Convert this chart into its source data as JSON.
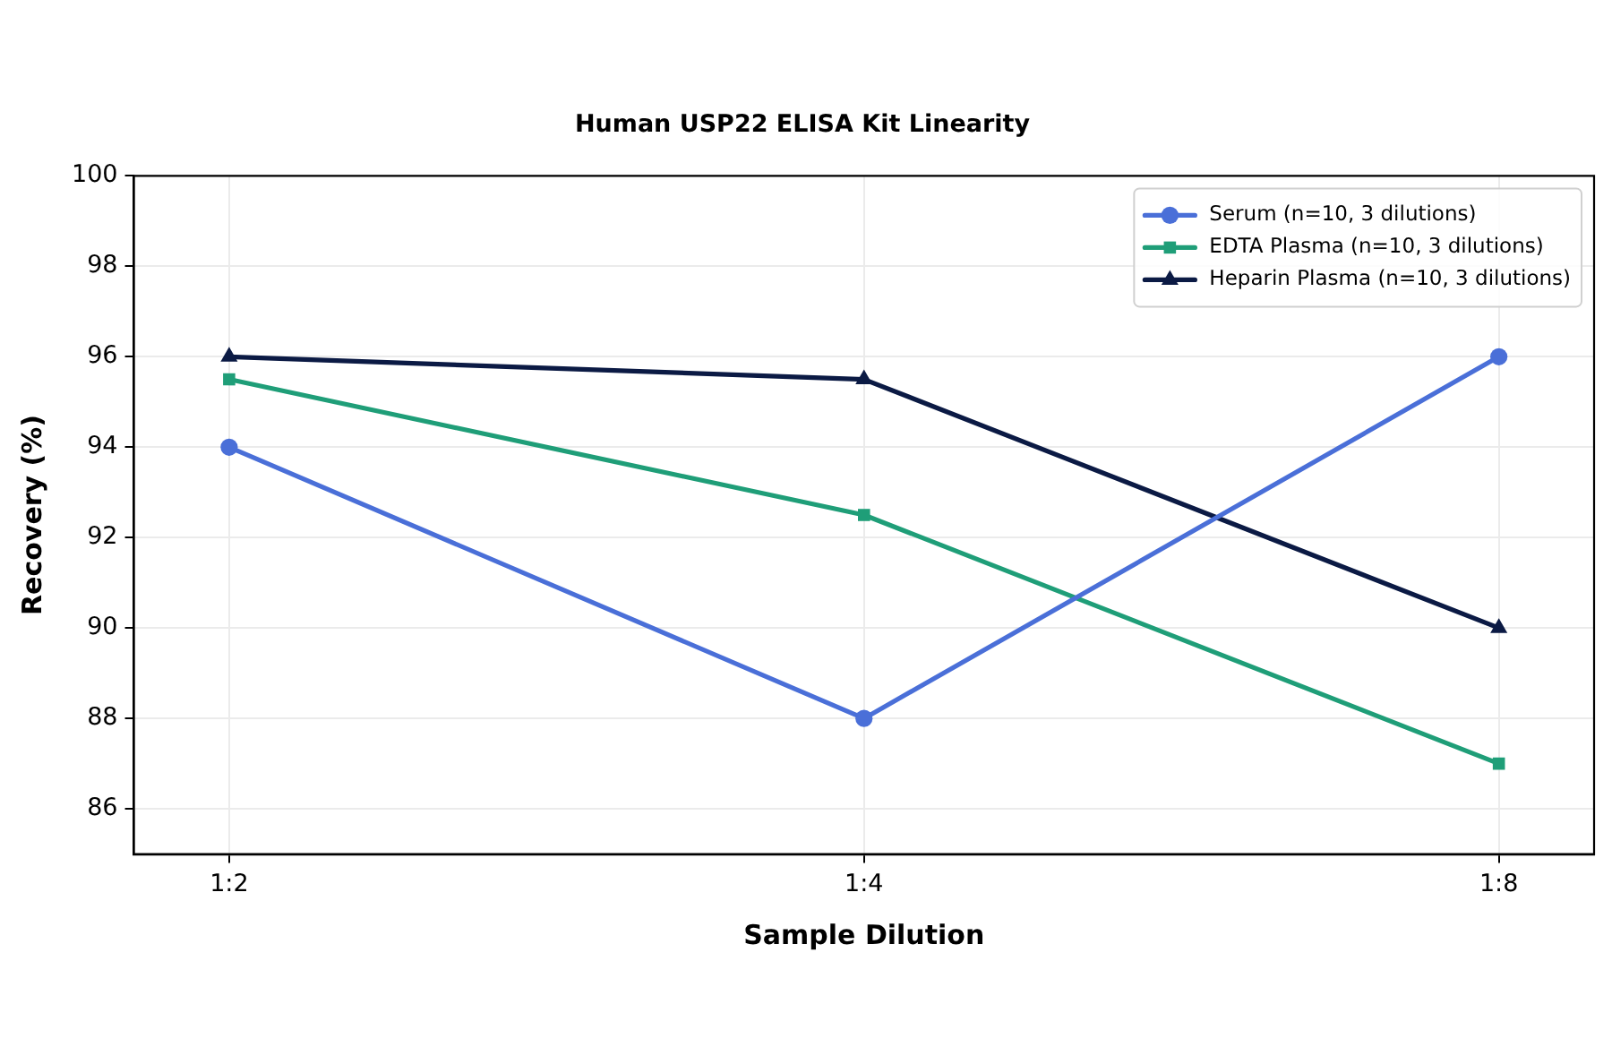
{
  "chart_data": {
    "type": "line",
    "title": "Human USP22 ELISA Kit Linearity",
    "xlabel": "Sample Dilution",
    "ylabel": "Recovery (%)",
    "categories": [
      "1:2",
      "1:4",
      "1:8"
    ],
    "series": [
      {
        "name": "Serum (n=10, 3 dilutions)",
        "color": "#4a6fd8",
        "values": [
          94,
          88,
          96
        ],
        "marker": "circle"
      },
      {
        "name": "EDTA Plasma (n=10, 3 dilutions)",
        "color": "#1f9e78",
        "values": [
          95.5,
          92.5,
          87
        ],
        "marker": "square"
      },
      {
        "name": "Heparin Plasma (n=10, 3 dilutions)",
        "color": "#0b1a44",
        "values": [
          96,
          95.5,
          90
        ],
        "marker": "triangle"
      }
    ],
    "ylim": [
      85,
      100
    ],
    "yticks": [
      86,
      88,
      90,
      92,
      94,
      96,
      98,
      100
    ],
    "grid": true,
    "legend": "top right",
    "line_style": "solid"
  }
}
